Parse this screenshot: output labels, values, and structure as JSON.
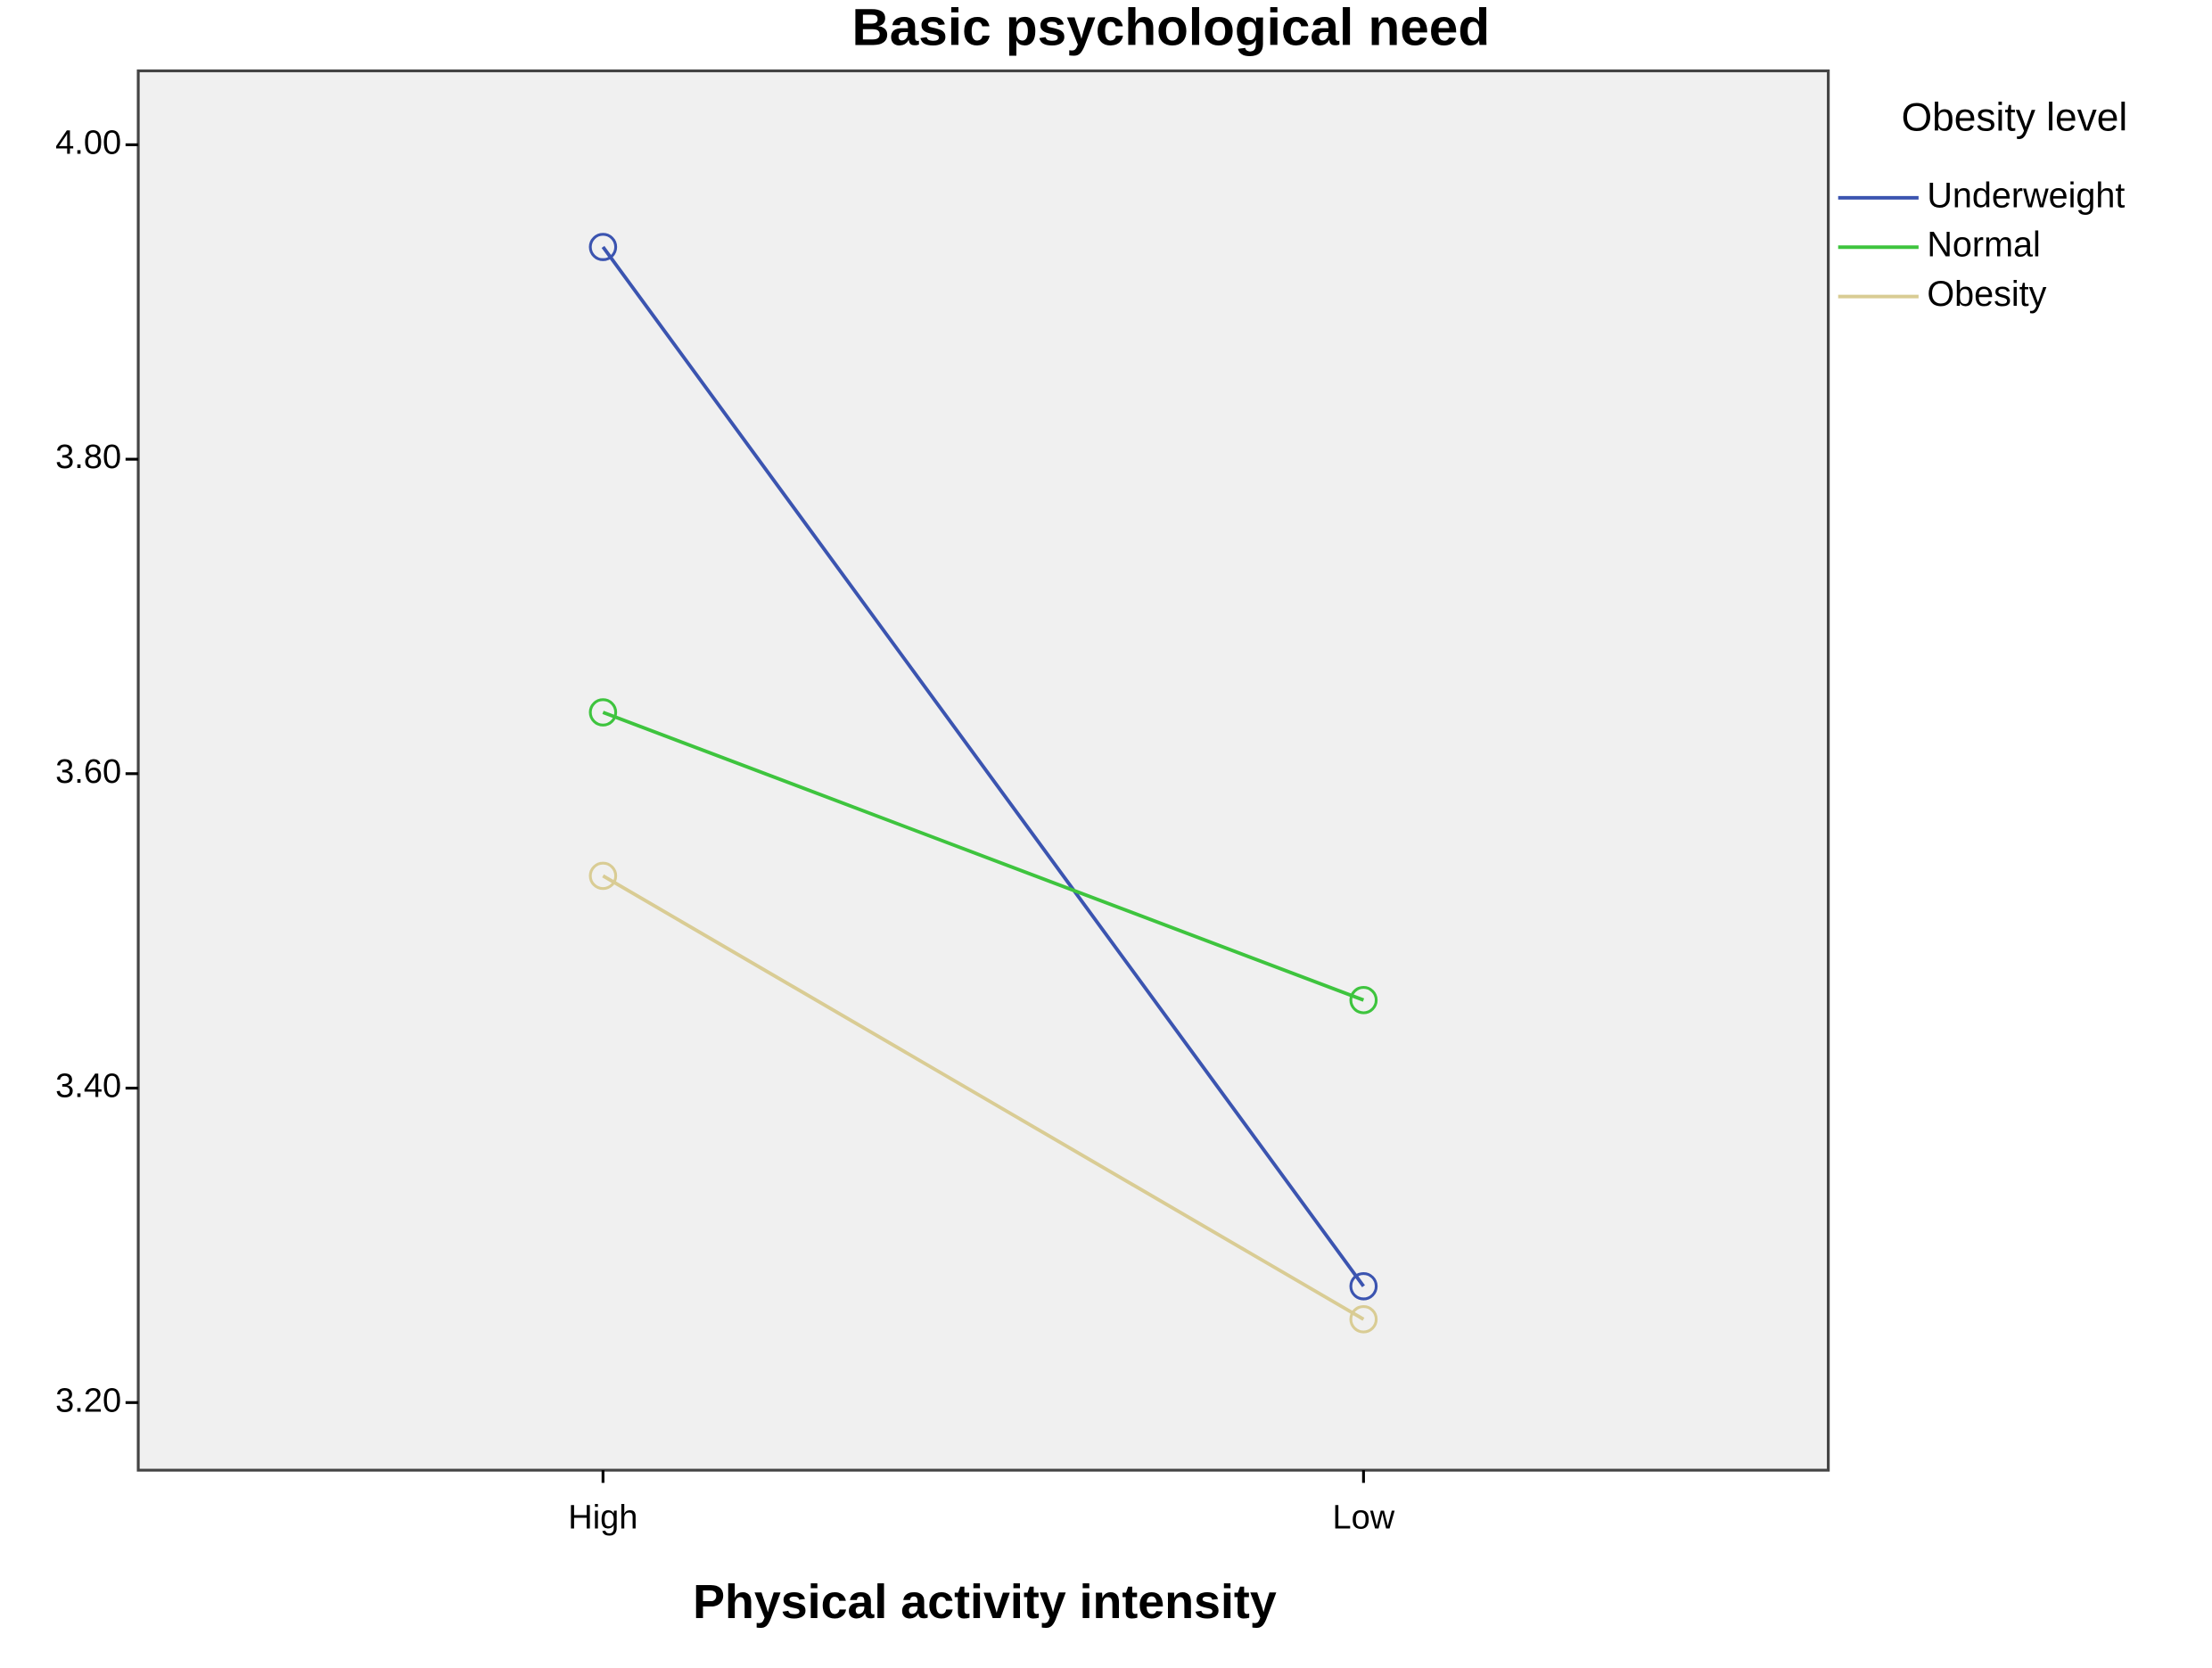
{
  "chart_data": {
    "type": "line",
    "title": "Basic psychological need",
    "x_label": "Physical activity intensity",
    "legend_title": "Obesity level",
    "legend_position": "right",
    "categories": [
      "High",
      "Low"
    ],
    "series": [
      {
        "name": "Underweight",
        "color": "#3b54b0",
        "values": [
          3.935,
          3.274
        ]
      },
      {
        "name": "Normal",
        "color": "#3ec43e",
        "values": [
          3.639,
          3.456
        ]
      },
      {
        "name": "Obesity",
        "color": "#d9cc94",
        "values": [
          3.535,
          3.253
        ]
      }
    ],
    "ylim": [
      3.157,
      4.047
    ],
    "yticks": [
      {
        "value": 3.2,
        "label": "3.20"
      },
      {
        "value": 3.4,
        "label": "3.40"
      },
      {
        "value": 3.6,
        "label": "3.60"
      },
      {
        "value": 3.8,
        "label": "3.80"
      },
      {
        "value": 4.0,
        "label": "4.00"
      }
    ],
    "grid": false
  }
}
